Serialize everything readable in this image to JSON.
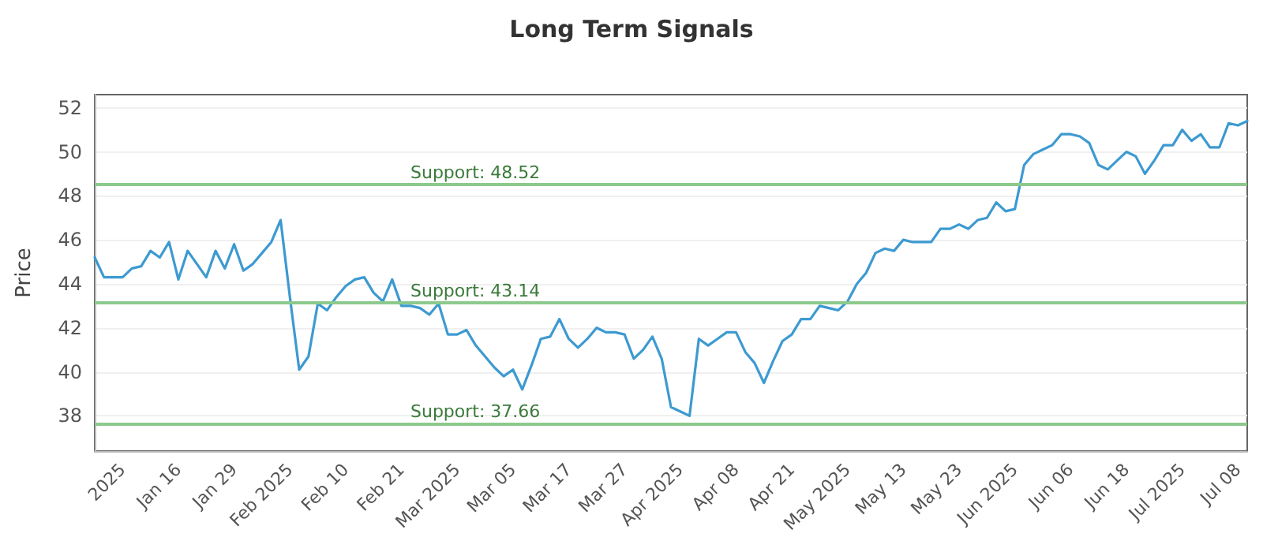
{
  "chart_data": {
    "type": "line",
    "title": "Long Term Signals",
    "ylabel": "Price",
    "categories": [
      null,
      null,
      null,
      "2025",
      null,
      null,
      null,
      null,
      null,
      "Jan 16",
      null,
      null,
      null,
      null,
      null,
      "Jan 29",
      null,
      null,
      null,
      null,
      null,
      "Feb 2025",
      null,
      null,
      null,
      null,
      null,
      "Feb 10",
      null,
      null,
      null,
      null,
      null,
      "Feb 21",
      null,
      null,
      null,
      null,
      null,
      "Mar 2025",
      null,
      null,
      null,
      null,
      null,
      "Mar 05",
      null,
      null,
      null,
      null,
      null,
      "Mar 17",
      null,
      null,
      null,
      null,
      null,
      "Mar 27",
      null,
      null,
      null,
      null,
      null,
      "Apr 2025",
      null,
      null,
      null,
      null,
      null,
      "Apr 08",
      null,
      null,
      null,
      null,
      null,
      "Apr 21",
      null,
      null,
      null,
      null,
      null,
      "May 2025",
      null,
      null,
      null,
      null,
      null,
      "May 13",
      null,
      null,
      null,
      null,
      null,
      "May 23",
      null,
      null,
      null,
      null,
      null,
      "Jun 2025",
      null,
      null,
      null,
      null,
      null,
      "Jun 06",
      null,
      null,
      null,
      null,
      null,
      "Jun 18",
      null,
      null,
      null,
      null,
      null,
      "Jul 2025",
      null,
      null,
      null,
      null,
      null,
      "Jul 08",
      null
    ],
    "series": [
      {
        "color": "#3d9ad1",
        "values": [
          45.2,
          44.3,
          44.3,
          44.3,
          44.7,
          44.8,
          45.5,
          45.2,
          45.9,
          44.2,
          45.5,
          44.9,
          44.3,
          45.5,
          44.7,
          45.8,
          44.6,
          44.9,
          45.4,
          45.9,
          46.9,
          43.4,
          40.1,
          40.7,
          43.1,
          42.8,
          43.4,
          43.9,
          44.2,
          44.3,
          43.6,
          43.2,
          44.2,
          43.0,
          43.0,
          42.9,
          42.6,
          43.1,
          41.7,
          41.7,
          41.9,
          41.2,
          40.7,
          40.2,
          39.8,
          40.1,
          39.2,
          40.3,
          41.5,
          41.6,
          42.4,
          41.5,
          41.1,
          41.5,
          42.0,
          41.8,
          41.8,
          41.7,
          40.6,
          41.0,
          41.6,
          40.6,
          38.4,
          38.2,
          38.0,
          41.5,
          41.2,
          41.5,
          41.8,
          41.8,
          40.9,
          40.4,
          39.5,
          40.5,
          41.4,
          41.7,
          42.4,
          42.4,
          43.0,
          42.9,
          42.8,
          43.2,
          44.0,
          44.5,
          45.4,
          45.6,
          45.5,
          46.0,
          45.9,
          45.9,
          45.9,
          46.5,
          46.5,
          46.7,
          46.5,
          46.9,
          47.0,
          47.7,
          47.3,
          47.4,
          49.4,
          49.9,
          50.1,
          50.3,
          50.8,
          50.8,
          50.7,
          50.4,
          49.4,
          49.2,
          49.6,
          50.0,
          49.8,
          49.0,
          49.6,
          50.3,
          50.3,
          51.0,
          50.5,
          50.8,
          50.2,
          50.2,
          51.3,
          51.2,
          51.4
        ]
      }
    ],
    "ylim": [
      36.4,
      52.6
    ],
    "yticks": [
      38,
      40,
      42,
      44,
      46,
      48,
      50,
      52
    ],
    "ref_lines": [
      {
        "axis": "y",
        "value": 48.52,
        "label": "Support: 48.52",
        "color": "#8cc98c"
      },
      {
        "axis": "y",
        "value": 43.14,
        "label": "Support: 43.14",
        "color": "#8cc98c"
      },
      {
        "axis": "y",
        "value": 37.66,
        "label": "Support: 37.66",
        "color": "#8cc98c"
      }
    ],
    "grid": "y",
    "marker": "none",
    "line_style": "solid"
  }
}
